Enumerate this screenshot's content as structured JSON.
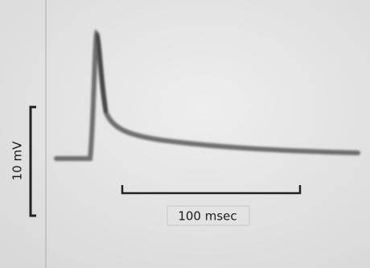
{
  "scale_bars": {
    "voltage": {
      "label": "10 mV"
    },
    "time": {
      "label": "100 msec"
    }
  }
}
